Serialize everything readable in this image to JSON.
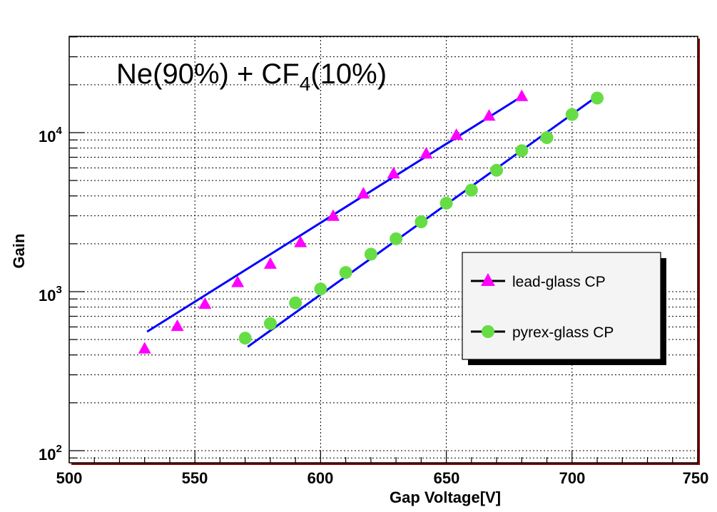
{
  "chart_data": {
    "type": "scatter",
    "annotation": {
      "text_main": "Ne(90%) + CF",
      "subscript": "4",
      "text_tail": "(10%)"
    },
    "xlabel": "Gap Voltage[V]",
    "ylabel": "Gain",
    "xlim": [
      500,
      750
    ],
    "ylim": [
      80,
      40000
    ],
    "yscale": "log",
    "grid": true,
    "x_ticks": [
      "500",
      "550",
      "600",
      "650",
      "700",
      "750"
    ],
    "y_ticks": [
      {
        "base": "10",
        "exp": "2",
        "value": 100
      },
      {
        "base": "10",
        "exp": "3",
        "value": 1000
      },
      {
        "base": "10",
        "exp": "4",
        "value": 10000
      }
    ],
    "legend": {
      "position": "center-right"
    },
    "series": [
      {
        "name": "lead-glass CP",
        "marker": "triangle",
        "color": "#ff00ff",
        "line_color": "#0000ff",
        "x": [
          530,
          543,
          554,
          567,
          580,
          592,
          605,
          617,
          629,
          642,
          654,
          667,
          680
        ],
        "y": [
          440,
          610,
          840,
          1150,
          1500,
          2050,
          3000,
          4150,
          5550,
          7400,
          9700,
          12800,
          17000
        ],
        "fit": {
          "x": [
            531,
            679
          ],
          "y": [
            560,
            16500
          ]
        }
      },
      {
        "name": "pyrex-glass CP",
        "marker": "circle",
        "color": "#66dd44",
        "line_color": "#0000ff",
        "x": [
          570,
          580,
          590,
          600,
          610,
          620,
          630,
          640,
          650,
          660,
          670,
          680,
          690,
          700,
          710
        ],
        "y": [
          510,
          630,
          850,
          1040,
          1320,
          1720,
          2150,
          2750,
          3600,
          4350,
          5800,
          7700,
          9300,
          13000,
          16500
        ],
        "fit": {
          "x": [
            571,
            709
          ],
          "y": [
            450,
            16500
          ]
        }
      }
    ]
  }
}
